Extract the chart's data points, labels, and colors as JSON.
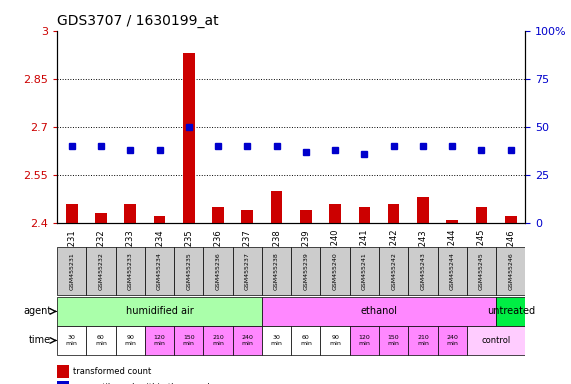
{
  "title": "GDS3707 / 1630199_at",
  "samples": [
    "GSM455231",
    "GSM455232",
    "GSM455233",
    "GSM455234",
    "GSM455235",
    "GSM455236",
    "GSM455237",
    "GSM455238",
    "GSM455239",
    "GSM455240",
    "GSM455241",
    "GSM455242",
    "GSM455243",
    "GSM455244",
    "GSM455245",
    "GSM455246"
  ],
  "transformed_count": [
    2.46,
    2.43,
    2.46,
    2.42,
    2.93,
    2.45,
    2.44,
    2.5,
    2.44,
    2.46,
    2.45,
    2.46,
    2.48,
    2.41,
    2.45,
    2.42
  ],
  "percentile_rank": [
    40,
    40,
    38,
    38,
    50,
    40,
    40,
    40,
    37,
    38,
    36,
    40,
    40,
    40,
    38,
    38
  ],
  "ylim_left": [
    2.4,
    3.0
  ],
  "ylim_right": [
    0,
    100
  ],
  "yticks_left": [
    2.4,
    2.55,
    2.7,
    2.85,
    3.0
  ],
  "yticks_right": [
    0,
    25,
    50,
    75,
    100
  ],
  "ytick_labels_left": [
    "2.4",
    "2.55",
    "2.7",
    "2.85",
    "3"
  ],
  "ytick_labels_right": [
    "0",
    "25",
    "50",
    "75",
    "100%"
  ],
  "bar_color": "#cc0000",
  "dot_color": "#0000cc",
  "grid_color": "#000000",
  "agent_groups": [
    {
      "label": "humidified air",
      "start": 0,
      "end": 7,
      "color": "#aaffaa"
    },
    {
      "label": "ethanol",
      "start": 7,
      "end": 15,
      "color": "#ff88ff"
    },
    {
      "label": "untreated",
      "start": 15,
      "end": 16,
      "color": "#00ee44"
    }
  ],
  "time_labels": [
    "30\nmin",
    "60\nmin",
    "90\nmin",
    "120\nmin",
    "150\nmin",
    "210\nmin",
    "240\nmin",
    "30\nmin",
    "60\nmin",
    "90\nmin",
    "120\nmin",
    "150\nmin",
    "210\nmin",
    "240\nmin",
    "",
    ""
  ],
  "time_colors": [
    "#ffffff",
    "#ffffff",
    "#ffffff",
    "#ff88ff",
    "#ff88ff",
    "#ff88ff",
    "#ff88ff",
    "#ffffff",
    "#ffffff",
    "#ffffff",
    "#ff88ff",
    "#ff88ff",
    "#ff88ff",
    "#ff88ff",
    "#ffccff",
    "#ffccff"
  ],
  "time_row_label": "control",
  "bg_color": "#ffffff",
  "tick_label_color_left": "#cc0000",
  "tick_label_color_right": "#0000cc",
  "bar_width": 0.5
}
